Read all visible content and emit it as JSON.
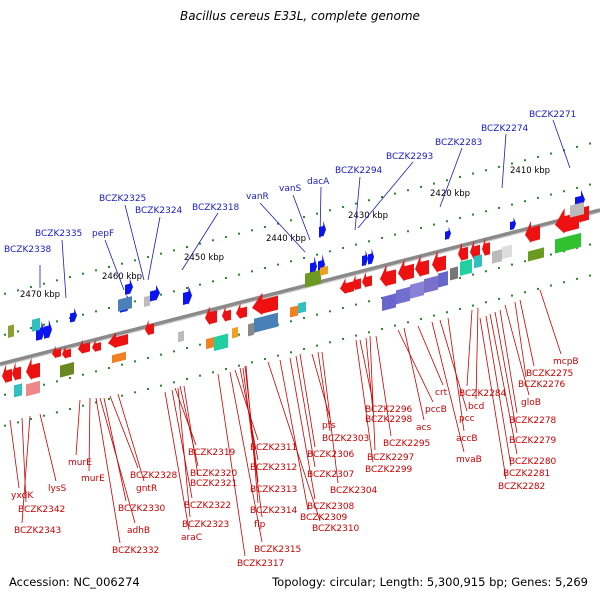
{
  "title": "Bacillus cereus E33L, complete genome",
  "footer": {
    "accession": "Accession: NC_006274",
    "topology": "Topology: circular; Length: 5,300,915 bp; Genes: 5,269"
  },
  "scale_labels": [
    "2470 kbp",
    "2460 kbp",
    "2450 kbp",
    "2440 kbp",
    "2430 kbp",
    "2420 kbp",
    "2410 kbp"
  ],
  "forward_genes": [
    "BCZK2338",
    "BCZK2335",
    "pepF",
    "BCZK2325",
    "BCZK2324",
    "BCZK2318",
    "vanR",
    "vanS",
    "dacA",
    "BCZK2294",
    "BCZK2293",
    "BCZK2283",
    "BCZK2274",
    "BCZK2271"
  ],
  "reverse_genes": [
    "yxdK",
    "BCZK2342",
    "BCZK2343",
    "lysS",
    "murE",
    "murE",
    "BCZK2328",
    "gntR",
    "BCZK2330",
    "adhB",
    "BCZK2332",
    "BCZK2319",
    "BCZK2320",
    "BCZK2321",
    "BCZK2322",
    "araC",
    "BCZK2323",
    "BCZK2311",
    "BCZK2312",
    "BCZK2313",
    "BCZK2314",
    "flp",
    "BCZK2315",
    "BCZK2317",
    "pfs",
    "BCZK2303",
    "BCZK2306",
    "BCZK2307",
    "BCZK2308",
    "BCZK2309",
    "BCZK2310",
    "BCZK2304",
    "BCZK2296",
    "BCZK2298",
    "BCZK2295",
    "BCZK2297",
    "BCZK2299",
    "pccB",
    "acs",
    "crt",
    "accB",
    "pcc",
    "mvaB",
    "BCZK2284",
    "bcd",
    "gloB",
    "BCZK2276",
    "BCZK2275",
    "mcpB",
    "BCZK2278",
    "BCZK2279",
    "BCZK2280",
    "BCZK2281",
    "BCZK2282"
  ],
  "colors": {
    "forward_label": "#1a1ac8",
    "reverse_label": "#cc0000",
    "forward_feature": "#0a14f0",
    "reverse_feature": "#ee1111",
    "backbone": "#8a8a8a",
    "tick": "#2a8a2a"
  }
}
